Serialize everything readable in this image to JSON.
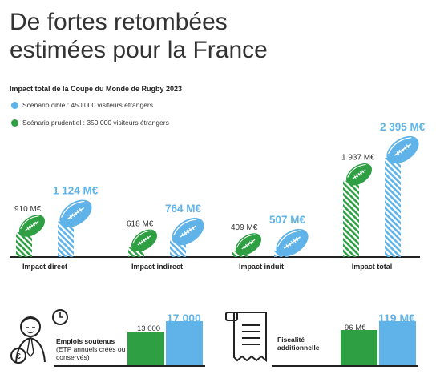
{
  "title_line1": "De fortes retombées",
  "title_line2": "estimées pour la France",
  "colors": {
    "target": "#5fb3e8",
    "prudent": "#2ea043",
    "dark": "#222222"
  },
  "chart_data": {
    "type": "bar",
    "title": "Impact total de la Coupe du Monde de Rugby 2023",
    "categories": [
      "Impact direct",
      "Impact indirect",
      "Impact induit",
      "Impact total"
    ],
    "series": [
      {
        "name": "Scénario prudentiel : 350 000 visiteurs étrangers",
        "values": [
          910,
          618,
          409,
          1937
        ],
        "labels": [
          "910 M€",
          "618 M€",
          "409 M€",
          "1 937 M€"
        ]
      },
      {
        "name": "Scénario cible : 450 000 visiteurs étrangers",
        "values": [
          1124,
          764,
          507,
          2395
        ],
        "labels": [
          "1 124 M€",
          "764 M€",
          "507 M€",
          "2 395 M€"
        ]
      }
    ],
    "unit": "M€"
  },
  "bottom": {
    "jobs": {
      "label_bold": "Emplois soutenus",
      "label_detail": "(ETP annuels créés ou conservés)",
      "prudent": 13000,
      "target": 17000,
      "prudent_label": "13 000",
      "target_label": "17 000"
    },
    "tax": {
      "label_bold": "Fiscalité additionnelle",
      "prudent": 96,
      "target": 119,
      "prudent_label": "96 M€",
      "target_label": "119 M€"
    }
  }
}
